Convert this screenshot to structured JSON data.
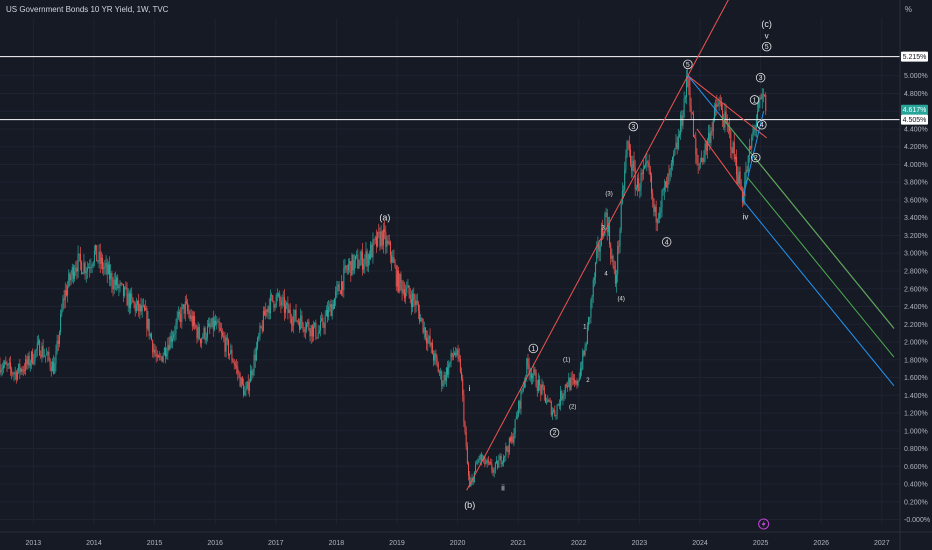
{
  "header": {
    "title": "US Government Bonds 10 YR Yield, 1W, TVC",
    "unit": "%"
  },
  "colors": {
    "background": "#161a25",
    "up": "#26a69a",
    "down": "#ef5350",
    "fork_median": "#ef5350",
    "fork_upper": "#2196f3",
    "fork_green": "#4caf50",
    "level_line": "#ffffff",
    "grid": "#1f2331",
    "price_badge": "#26a69a"
  },
  "chart_data": {
    "type": "candlestick",
    "title": "US Government Bonds 10 YR Yield, 1W, TVC",
    "xlim": [
      2012.45,
      2027.3
    ],
    "ylim": [
      -0.05,
      5.65
    ],
    "x_ticks": [
      "2013",
      "2014",
      "2015",
      "2016",
      "2017",
      "2018",
      "2019",
      "2020",
      "2021",
      "2022",
      "2023",
      "2024",
      "2025",
      "2026",
      "2027"
    ],
    "y_ticks": [
      "-0.000%",
      "0.200%",
      "0.400%",
      "0.600%",
      "0.800%",
      "1.000%",
      "1.200%",
      "1.400%",
      "1.600%",
      "1.800%",
      "2.000%",
      "2.200%",
      "2.400%",
      "2.600%",
      "2.800%",
      "3.000%",
      "3.200%",
      "3.400%",
      "3.600%",
      "3.800%",
      "4.000%",
      "4.200%",
      "4.400%",
      "4.600%",
      "4.800%",
      "5.000%"
    ],
    "price_path": [
      [
        2012.45,
        1.75
      ],
      [
        2012.7,
        1.65
      ],
      [
        2012.9,
        1.75
      ],
      [
        2013.1,
        1.95
      ],
      [
        2013.35,
        1.7
      ],
      [
        2013.5,
        2.5
      ],
      [
        2013.7,
        2.9
      ],
      [
        2013.9,
        2.85
      ],
      [
        2014.0,
        3.0
      ],
      [
        2014.3,
        2.7
      ],
      [
        2014.6,
        2.45
      ],
      [
        2014.85,
        2.3
      ],
      [
        2015.05,
        1.75
      ],
      [
        2015.3,
        2.1
      ],
      [
        2015.5,
        2.4
      ],
      [
        2015.75,
        2.05
      ],
      [
        2016.0,
        2.2
      ],
      [
        2016.3,
        1.8
      ],
      [
        2016.5,
        1.4
      ],
      [
        2016.85,
        2.4
      ],
      [
        2017.0,
        2.5
      ],
      [
        2017.25,
        2.3
      ],
      [
        2017.5,
        2.2
      ],
      [
        2017.7,
        2.1
      ],
      [
        2017.95,
        2.45
      ],
      [
        2018.2,
        2.85
      ],
      [
        2018.5,
        2.95
      ],
      [
        2018.75,
        3.2
      ],
      [
        2018.9,
        3.0
      ],
      [
        2019.0,
        2.7
      ],
      [
        2019.3,
        2.45
      ],
      [
        2019.55,
        1.95
      ],
      [
        2019.75,
        1.55
      ],
      [
        2019.95,
        1.9
      ],
      [
        2020.05,
        1.7
      ],
      [
        2020.15,
        0.7
      ],
      [
        2020.2,
        0.35
      ],
      [
        2020.35,
        0.7
      ],
      [
        2020.6,
        0.55
      ],
      [
        2020.9,
        0.9
      ],
      [
        2021.15,
        1.75
      ],
      [
        2021.5,
        1.3
      ],
      [
        2021.6,
        1.2
      ],
      [
        2021.8,
        1.55
      ],
      [
        2021.95,
        1.5
      ],
      [
        2022.1,
        1.9
      ],
      [
        2022.3,
        2.95
      ],
      [
        2022.45,
        3.45
      ],
      [
        2022.6,
        2.65
      ],
      [
        2022.8,
        4.25
      ],
      [
        2022.95,
        3.75
      ],
      [
        2023.15,
        3.95
      ],
      [
        2023.25,
        3.4
      ],
      [
        2023.5,
        3.85
      ],
      [
        2023.65,
        4.3
      ],
      [
        2023.8,
        5.0
      ],
      [
        2023.95,
        3.95
      ],
      [
        2024.1,
        4.2
      ],
      [
        2024.3,
        4.7
      ],
      [
        2024.5,
        4.3
      ],
      [
        2024.7,
        3.65
      ],
      [
        2024.85,
        4.25
      ],
      [
        2024.95,
        4.6
      ],
      [
        2025.05,
        4.75
      ],
      [
        2025.1,
        4.617
      ]
    ],
    "horizontal_lines": [
      5.215,
      4.505
    ],
    "price_labels": [
      {
        "value": 5.215,
        "text": "5.215%"
      },
      {
        "value": 4.617,
        "text": "4.617%"
      },
      {
        "value": 4.505,
        "text": "4.505%"
      }
    ],
    "pitchfork": {
      "pivot": [
        2023.8,
        5.0
      ],
      "a": [
        2024.7,
        3.6
      ],
      "b": [
        2025.05,
        4.6
      ],
      "end_x": 2027.2
    },
    "trendline": {
      "from": [
        2020.15,
        0.33
      ],
      "to": [
        2023.8,
        5.0
      ],
      "extend_to": 2025.12
    },
    "fan_lines": [
      {
        "from": [
          2023.8,
          5.0
        ],
        "to": [
          2025.1,
          4.3
        ]
      },
      {
        "from": [
          2023.95,
          4.4
        ],
        "to": [
          2024.75,
          3.65
        ]
      }
    ],
    "annotations": [
      {
        "text": "(a)",
        "x": 2018.8,
        "y": 3.37,
        "size": 9,
        "circled": false
      },
      {
        "text": "(b)",
        "x": 2020.2,
        "y": 0.13,
        "size": 9,
        "circled": false
      },
      {
        "text": "i",
        "x": 2020.2,
        "y": 1.45,
        "size": 8,
        "circled": false
      },
      {
        "text": "ii",
        "x": 2020.75,
        "y": 0.33,
        "size": 8,
        "circled": false
      },
      {
        "text": "1",
        "x": 2021.25,
        "y": 1.9,
        "size": 7,
        "circled": true
      },
      {
        "text": "2",
        "x": 2021.6,
        "y": 0.95,
        "size": 7,
        "circled": true
      },
      {
        "text": "(1)",
        "x": 2021.8,
        "y": 1.78,
        "size": 6,
        "circled": false
      },
      {
        "text": "(2)",
        "x": 2021.9,
        "y": 1.25,
        "size": 6,
        "circled": false
      },
      {
        "text": "1",
        "x": 2022.1,
        "y": 2.15,
        "size": 6,
        "circled": false
      },
      {
        "text": "2",
        "x": 2022.15,
        "y": 1.55,
        "size": 6,
        "circled": false
      },
      {
        "text": "3",
        "x": 2022.4,
        "y": 3.27,
        "size": 6,
        "circled": false
      },
      {
        "text": "4",
        "x": 2022.45,
        "y": 2.75,
        "size": 6,
        "circled": false
      },
      {
        "text": "(3)",
        "x": 2022.5,
        "y": 3.65,
        "size": 6,
        "circled": false
      },
      {
        "text": "(4)",
        "x": 2022.7,
        "y": 2.47,
        "size": 6,
        "circled": false
      },
      {
        "text": "3",
        "x": 2022.9,
        "y": 4.4,
        "size": 7,
        "circled": true
      },
      {
        "text": "4",
        "x": 2023.45,
        "y": 3.1,
        "size": 7,
        "circled": true
      },
      {
        "text": "5",
        "x": 2023.8,
        "y": 5.1,
        "size": 7,
        "circled": true
      },
      {
        "text": "iv",
        "x": 2024.75,
        "y": 3.38,
        "size": 8,
        "circled": false
      },
      {
        "text": "1",
        "x": 2024.9,
        "y": 4.7,
        "size": 7,
        "circled": true
      },
      {
        "text": "2",
        "x": 2024.92,
        "y": 4.05,
        "size": 7,
        "circled": true
      },
      {
        "text": "3",
        "x": 2025.0,
        "y": 4.95,
        "size": 7,
        "circled": true
      },
      {
        "text": "4",
        "x": 2025.02,
        "y": 4.42,
        "size": 7,
        "circled": true
      },
      {
        "text": "5",
        "x": 2025.1,
        "y": 5.3,
        "size": 7,
        "circled": true
      },
      {
        "text": "v",
        "x": 2025.1,
        "y": 5.42,
        "size": 8,
        "circled": false
      },
      {
        "text": "(c)",
        "x": 2025.1,
        "y": 5.55,
        "size": 9,
        "circled": false
      }
    ]
  }
}
